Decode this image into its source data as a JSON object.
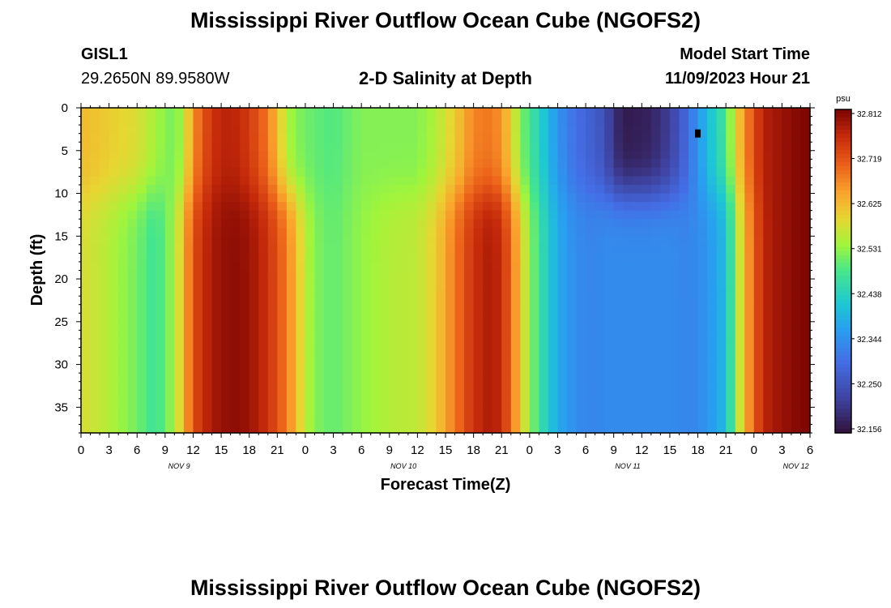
{
  "page": {
    "title": "Mississippi River Outflow Ocean Cube (NGOFS2)",
    "title_repeat": "Mississippi River Outflow Ocean Cube (NGOFS2)",
    "station_id": "GISL1",
    "station_coords": "29.2650N  89.9580W",
    "plot_subtitle": "2-D Salinity at Depth",
    "model_start_label": "Model Start Time",
    "model_start_value": "11/09/2023 Hour 21"
  },
  "chart_data": {
    "type": "heatmap",
    "title": "2-D Salinity at Depth",
    "xlabel": "Forecast Time(Z)",
    "ylabel": "Depth (ft)",
    "x_tick_labels": [
      "0",
      "3",
      "6",
      "9",
      "12",
      "15",
      "18",
      "21",
      "0",
      "3",
      "6",
      "9",
      "12",
      "15",
      "18",
      "21",
      "0",
      "3",
      "6",
      "9",
      "12",
      "15",
      "18",
      "21",
      "0",
      "3",
      "6"
    ],
    "x_date_labels": [
      {
        "label": "NOV 9",
        "hour_index": 10.5
      },
      {
        "label": "NOV 10",
        "hour_index": 34.5
      },
      {
        "label": "NOV 11",
        "hour_index": 58.5
      },
      {
        "label": "NOV 12",
        "hour_index": 76.5
      }
    ],
    "xlim_hours": [
      0,
      78
    ],
    "ylim_ft": [
      0,
      38
    ],
    "y_tick_labels": [
      "0",
      "5",
      "10",
      "15",
      "20",
      "25",
      "30",
      "35"
    ],
    "y_ticks_ft": [
      0,
      5,
      10,
      15,
      20,
      25,
      30,
      35
    ],
    "colorbar": {
      "unit": "psu",
      "ticks": [
        "32.812",
        "32.719",
        "32.625",
        "32.531",
        "32.438",
        "32.344",
        "32.250",
        "32.156"
      ],
      "min": 32.156,
      "max": 32.812
    },
    "marker": {
      "hour": 66,
      "depth_ft": 3
    },
    "time_profile": {
      "hours": [
        0,
        3,
        6,
        8,
        10,
        11,
        12,
        14,
        16,
        18,
        20,
        22,
        23,
        24,
        25,
        27,
        30,
        33,
        36,
        38,
        40,
        42,
        44,
        45,
        46,
        47,
        49,
        51,
        53,
        55,
        56,
        57,
        58,
        59,
        61,
        63,
        65,
        67,
        69,
        70,
        71,
        72,
        73,
        74,
        76,
        78
      ],
      "surface_psu": [
        32.62,
        32.6,
        32.58,
        32.54,
        32.51,
        32.55,
        32.66,
        32.75,
        32.77,
        32.74,
        32.68,
        32.55,
        32.52,
        32.51,
        32.5,
        32.49,
        32.52,
        32.52,
        32.52,
        32.55,
        32.6,
        32.67,
        32.68,
        32.65,
        32.6,
        32.52,
        32.44,
        32.35,
        32.3,
        32.27,
        32.25,
        32.2,
        32.17,
        32.17,
        32.18,
        32.22,
        32.3,
        32.4,
        32.48,
        32.58,
        32.66,
        32.72,
        32.77,
        32.78,
        32.8,
        32.81
      ],
      "deep_psu": [
        32.58,
        32.55,
        32.51,
        32.47,
        32.54,
        32.62,
        32.72,
        32.78,
        32.8,
        32.79,
        32.75,
        32.68,
        32.62,
        32.56,
        32.52,
        32.5,
        32.53,
        32.55,
        32.56,
        32.6,
        32.68,
        32.75,
        32.78,
        32.75,
        32.7,
        32.6,
        32.47,
        32.38,
        32.34,
        32.33,
        32.34,
        32.34,
        32.34,
        32.34,
        32.34,
        32.34,
        32.33,
        32.35,
        32.4,
        32.52,
        32.62,
        32.7,
        32.76,
        32.78,
        32.8,
        32.81
      ]
    }
  }
}
